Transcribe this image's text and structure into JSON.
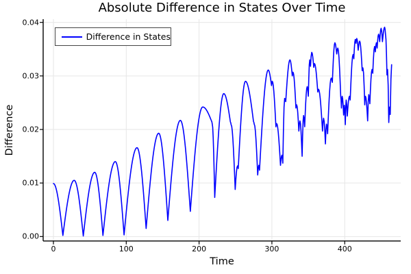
{
  "chart_data": {
    "type": "line",
    "title": "Absolute Difference in States Over Time",
    "xlabel": "Time",
    "ylabel": "Difference",
    "legend": {
      "label": "Difference in States",
      "position": "top-left",
      "border_color": "#444444"
    },
    "grid": true,
    "colors": {
      "line": "#0000ff",
      "grid": "#e6e6e6",
      "axis": "#000000",
      "background": "#ffffff",
      "text": "#000000"
    },
    "axes": {
      "xlim": [
        -14.1,
        476.9
      ],
      "ylim": [
        -0.00083,
        0.0406
      ],
      "x_ticks": [
        0,
        100,
        200,
        300,
        400
      ],
      "x_tick_labels": [
        "0",
        "100",
        "200",
        "300",
        "400"
      ],
      "y_ticks": [
        0,
        0.01,
        0.02,
        0.03,
        0.04
      ],
      "y_tick_labels": [
        "0.00",
        "0.01",
        "0.02",
        "0.03",
        "0.04"
      ]
    },
    "series": [
      {
        "name": "Difference in States",
        "color": "#0000ff",
        "interpolation": "abs-cosine-lobes",
        "extrema": [
          [
            0,
            0.0099
          ],
          [
            13,
            0.0002
          ],
          [
            28.5,
            0.0105
          ],
          [
            41,
            0.0001
          ],
          [
            56.7,
            0.012
          ],
          [
            68,
            0.0002
          ],
          [
            85,
            0.014
          ],
          [
            97,
            0.0003
          ],
          [
            114.8,
            0.0166
          ],
          [
            127.3,
            0.0015
          ],
          [
            144.6,
            0.0193
          ],
          [
            157.1,
            0.003
          ],
          [
            174.3,
            0.0217
          ],
          [
            188,
            0.0047
          ],
          [
            205,
            0.0242
          ],
          [
            217,
            0.0216
          ],
          [
            218,
            0.0211
          ],
          [
            221.5,
            0.0073
          ],
          [
            233.9,
            0.0267
          ],
          [
            243,
            0.0214
          ],
          [
            244,
            0.0209
          ],
          [
            249.6,
            0.0088
          ],
          [
            252.8,
            0.0132
          ],
          [
            253.8,
            0.0127
          ],
          [
            263.7,
            0.029
          ],
          [
            274.7,
            0.0215
          ],
          [
            275.7,
            0.021
          ],
          [
            280.5,
            0.0115
          ],
          [
            282,
            0.0133
          ],
          [
            283,
            0.0124
          ],
          [
            295,
            0.0311
          ],
          [
            299.5,
            0.0282
          ],
          [
            300.5,
            0.029
          ],
          [
            305.5,
            0.0205
          ],
          [
            306.5,
            0.0211
          ],
          [
            311.8,
            0.0133
          ],
          [
            313.8,
            0.0152
          ],
          [
            315,
            0.0137
          ],
          [
            317.5,
            0.0258
          ],
          [
            319,
            0.0252
          ],
          [
            324.8,
            0.033
          ],
          [
            328,
            0.03
          ],
          [
            329,
            0.0307
          ],
          [
            333,
            0.024
          ],
          [
            334,
            0.0246
          ],
          [
            337,
            0.0197
          ],
          [
            338.5,
            0.0216
          ],
          [
            341.5,
            0.015
          ],
          [
            343.5,
            0.0226
          ],
          [
            345,
            0.0205
          ],
          [
            348.5,
            0.028
          ],
          [
            350,
            0.0262
          ],
          [
            352,
            0.033
          ],
          [
            353,
            0.0318
          ],
          [
            354.7,
            0.0344
          ],
          [
            357.5,
            0.0316
          ],
          [
            358.5,
            0.0323
          ],
          [
            363,
            0.027
          ],
          [
            364,
            0.0275
          ],
          [
            369.5,
            0.0197
          ],
          [
            371,
            0.0221
          ],
          [
            373.5,
            0.0173
          ],
          [
            375,
            0.021
          ],
          [
            376.5,
            0.0192
          ],
          [
            381.5,
            0.0296
          ],
          [
            383,
            0.0288
          ],
          [
            386.5,
            0.0362
          ],
          [
            389,
            0.0341
          ],
          [
            390.5,
            0.0352
          ],
          [
            394.5,
            0.0262
          ],
          [
            395.5,
            0.024
          ],
          [
            396.5,
            0.0262
          ],
          [
            398.5,
            0.0227
          ],
          [
            399.5,
            0.0245
          ],
          [
            400.8,
            0.0209
          ],
          [
            402,
            0.0255
          ],
          [
            403.5,
            0.0225
          ],
          [
            406.5,
            0.0262
          ],
          [
            407.5,
            0.0255
          ],
          [
            411.5,
            0.034
          ],
          [
            412.5,
            0.0332
          ],
          [
            414.5,
            0.0368
          ],
          [
            415.5,
            0.0361
          ],
          [
            416.5,
            0.037
          ],
          [
            418.5,
            0.0348
          ],
          [
            420.5,
            0.0365
          ],
          [
            424,
            0.031
          ],
          [
            425,
            0.0315
          ],
          [
            427.5,
            0.0246
          ],
          [
            428.5,
            0.0262
          ],
          [
            431.5,
            0.0216
          ],
          [
            433,
            0.0265
          ],
          [
            434.5,
            0.0248
          ],
          [
            437.5,
            0.0312
          ],
          [
            438.5,
            0.0305
          ],
          [
            441,
            0.0355
          ],
          [
            442,
            0.0345
          ],
          [
            443.5,
            0.0362
          ],
          [
            444.5,
            0.0352
          ],
          [
            446.5,
            0.0378
          ],
          [
            448,
            0.0364
          ],
          [
            450,
            0.0389
          ],
          [
            451.8,
            0.0364
          ],
          [
            454.8,
            0.0391
          ],
          [
            456,
            0.0378
          ],
          [
            458,
            0.0302
          ],
          [
            458.8,
            0.0312
          ],
          [
            460.5,
            0.0213
          ],
          [
            461.8,
            0.0242
          ],
          [
            462.5,
            0.0228
          ],
          [
            464.4,
            0.0321
          ]
        ]
      }
    ]
  }
}
